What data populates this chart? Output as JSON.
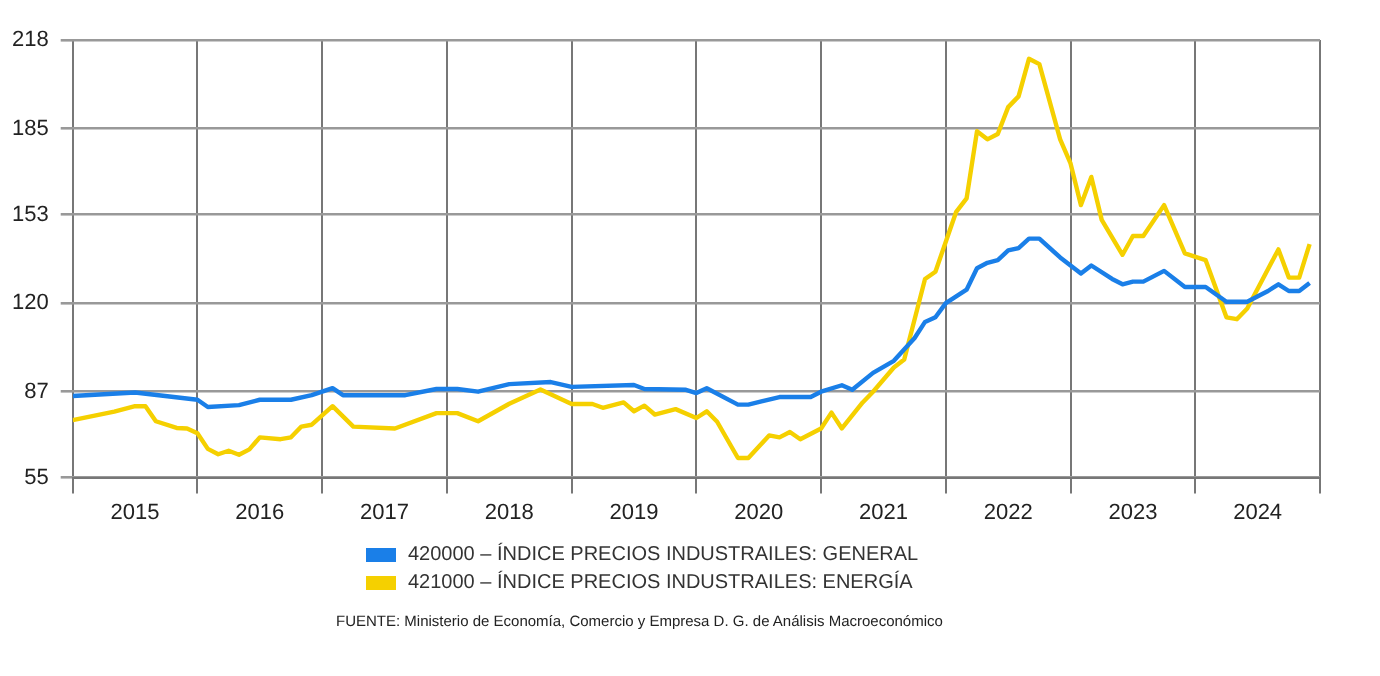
{
  "chart_data": {
    "type": "line",
    "xlim": [
      "2015-01",
      "2025-01"
    ],
    "xticks": [
      {
        "value": "2015-01",
        "label": null
      },
      {
        "value": "2015-07",
        "label": "2015"
      },
      {
        "value": "2016-01",
        "label": null
      },
      {
        "value": "2016-07",
        "label": "2016"
      },
      {
        "value": "2017-01",
        "label": null
      },
      {
        "value": "2017-07",
        "label": "2017"
      },
      {
        "value": "2018-01",
        "label": null
      },
      {
        "value": "2018-07",
        "label": "2018"
      },
      {
        "value": "2019-01",
        "label": null
      },
      {
        "value": "2019-07",
        "label": "2019"
      },
      {
        "value": "2020-01",
        "label": null
      },
      {
        "value": "2020-07",
        "label": "2020"
      },
      {
        "value": "2021-01",
        "label": null
      },
      {
        "value": "2021-07",
        "label": "2021"
      },
      {
        "value": "2022-01",
        "label": null
      },
      {
        "value": "2022-07",
        "label": "2022"
      },
      {
        "value": "2023-01",
        "label": null
      },
      {
        "value": "2023-07",
        "label": "2023"
      },
      {
        "value": "2024-01",
        "label": null
      },
      {
        "value": "2024-07",
        "label": "2024"
      },
      {
        "value": "2025-01",
        "label": null
      }
    ],
    "ylim": [
      55,
      218
    ],
    "yticks": [
      55,
      87,
      120,
      153,
      185,
      218
    ],
    "grid": true,
    "legend": "bottom",
    "marker": "none",
    "line_style": "solid",
    "series": [
      {
        "name": "420000 – ÍNDICE PRECIOS INDUSTRAILES: GENERAL",
        "color": "#1a7fe8",
        "x": [
          "2015-01",
          "2015-07",
          "2016-01",
          "2016-02",
          "2016-05",
          "2016-07",
          "2016-10",
          "2016-12",
          "2017-02",
          "2017-03",
          "2017-09",
          "2017-12",
          "2018-02",
          "2018-04",
          "2018-07",
          "2018-11",
          "2019-01",
          "2019-07",
          "2019-08",
          "2019-12",
          "2020-01",
          "2020-02",
          "2020-05",
          "2020-06",
          "2020-09",
          "2020-12",
          "2021-01",
          "2021-03",
          "2021-04",
          "2021-06",
          "2021-08",
          "2021-10",
          "2021-11",
          "2021-12",
          "2022-01",
          "2022-02",
          "2022-03",
          "2022-04",
          "2022-05",
          "2022-06",
          "2022-07",
          "2022-08",
          "2022-09",
          "2022-10",
          "2022-12",
          "2023-02",
          "2023-03",
          "2023-05",
          "2023-06",
          "2023-07",
          "2023-08",
          "2023-10",
          "2023-12",
          "2024-02",
          "2024-04",
          "2024-06",
          "2024-08",
          "2024-09",
          "2024-10",
          "2024-11",
          "2024-12"
        ],
        "values": [
          85.4,
          86.7,
          84,
          81.3,
          82,
          84,
          84,
          85.7,
          88.3,
          85.7,
          85.7,
          88,
          88,
          87,
          89.8,
          90.6,
          88.8,
          89.5,
          88,
          87.7,
          86.5,
          88.3,
          82.2,
          82.2,
          85,
          85,
          87,
          89.4,
          87.7,
          94,
          98.5,
          107,
          113,
          114.7,
          120,
          122.5,
          125,
          133,
          135,
          136,
          139.6,
          140.5,
          144,
          144,
          137,
          131,
          134,
          129,
          127,
          128,
          128,
          132,
          126,
          126,
          120.5,
          120.5,
          124.5,
          127,
          124.5,
          124.5,
          127.5
        ]
      },
      {
        "name": "421000 – ÍNDICE PRECIOS INDUSTRAILES: ENERGÍA",
        "color": "#f5d000",
        "x": [
          "2015-01",
          "2015-05",
          "2015-07",
          "2015-08",
          "2015-09",
          "2015-11",
          "2015-12",
          "2016-01",
          "2016-02",
          "2016-03",
          "2016-04",
          "2016-05",
          "2016-06",
          "2016-07",
          "2016-09",
          "2016-10",
          "2016-11",
          "2016-12",
          "2017-02",
          "2017-04",
          "2017-08",
          "2017-12",
          "2018-02",
          "2018-04",
          "2018-07",
          "2018-10",
          "2019-01",
          "2019-03",
          "2019-04",
          "2019-06",
          "2019-07",
          "2019-08",
          "2019-09",
          "2019-11",
          "2020-01",
          "2020-02",
          "2020-03",
          "2020-05",
          "2020-06",
          "2020-08",
          "2020-09",
          "2020-10",
          "2020-11",
          "2021-01",
          "2021-02",
          "2021-03",
          "2021-05",
          "2021-06",
          "2021-08",
          "2021-09",
          "2021-11",
          "2021-12",
          "2022-02",
          "2022-03",
          "2022-04",
          "2022-05",
          "2022-06",
          "2022-07",
          "2022-08",
          "2022-09",
          "2022-10",
          "2022-12",
          "2023-01",
          "2023-02",
          "2023-03",
          "2023-04",
          "2023-06",
          "2023-07",
          "2023-08",
          "2023-10",
          "2023-12",
          "2024-02",
          "2024-04",
          "2024-05",
          "2024-06",
          "2024-09",
          "2024-10",
          "2024-11",
          "2024-12"
        ],
        "values": [
          76.4,
          79.6,
          81.6,
          81.6,
          76,
          73.5,
          73.3,
          71.5,
          65.7,
          63.7,
          65,
          63.5,
          65.5,
          70,
          69.3,
          70,
          74,
          74.7,
          81.6,
          74,
          73.3,
          79,
          79,
          76,
          82.5,
          87.8,
          82.4,
          82.4,
          81,
          83,
          79.7,
          81.8,
          78.5,
          80.5,
          77.2,
          79.7,
          75.8,
          62.3,
          62.3,
          70.7,
          70,
          72,
          69.3,
          73.3,
          79.2,
          73.3,
          83,
          87,
          96,
          99,
          129,
          131.7,
          154,
          159,
          184,
          181,
          183,
          193,
          197,
          211,
          209,
          181,
          172,
          156.5,
          167,
          151,
          138,
          145,
          145,
          156.5,
          138.5,
          136,
          114.7,
          114,
          118,
          140,
          129.5,
          129.5,
          142
        ]
      }
    ],
    "annotations": [
      "FUENTE: Ministerio de Economía, Comercio y Empresa D. G. de Análisis Macroeconómico"
    ]
  }
}
